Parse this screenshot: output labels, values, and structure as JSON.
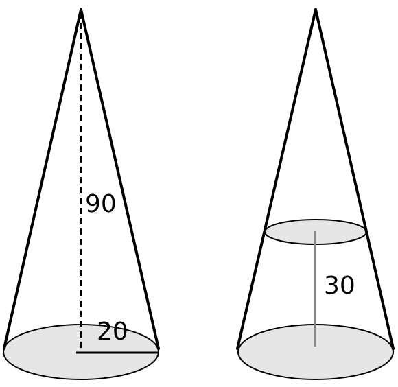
{
  "cones": [
    {
      "name": "full-cone",
      "labels": {
        "height": "90",
        "radius": "20"
      }
    },
    {
      "name": "truncated-cone",
      "labels": {
        "frustum_height": "30"
      }
    }
  ],
  "colors": {
    "outline": "#000000",
    "base_fill": "#e6e6e6",
    "measure_line": "#8a8a8a",
    "background": "#ffffff"
  }
}
